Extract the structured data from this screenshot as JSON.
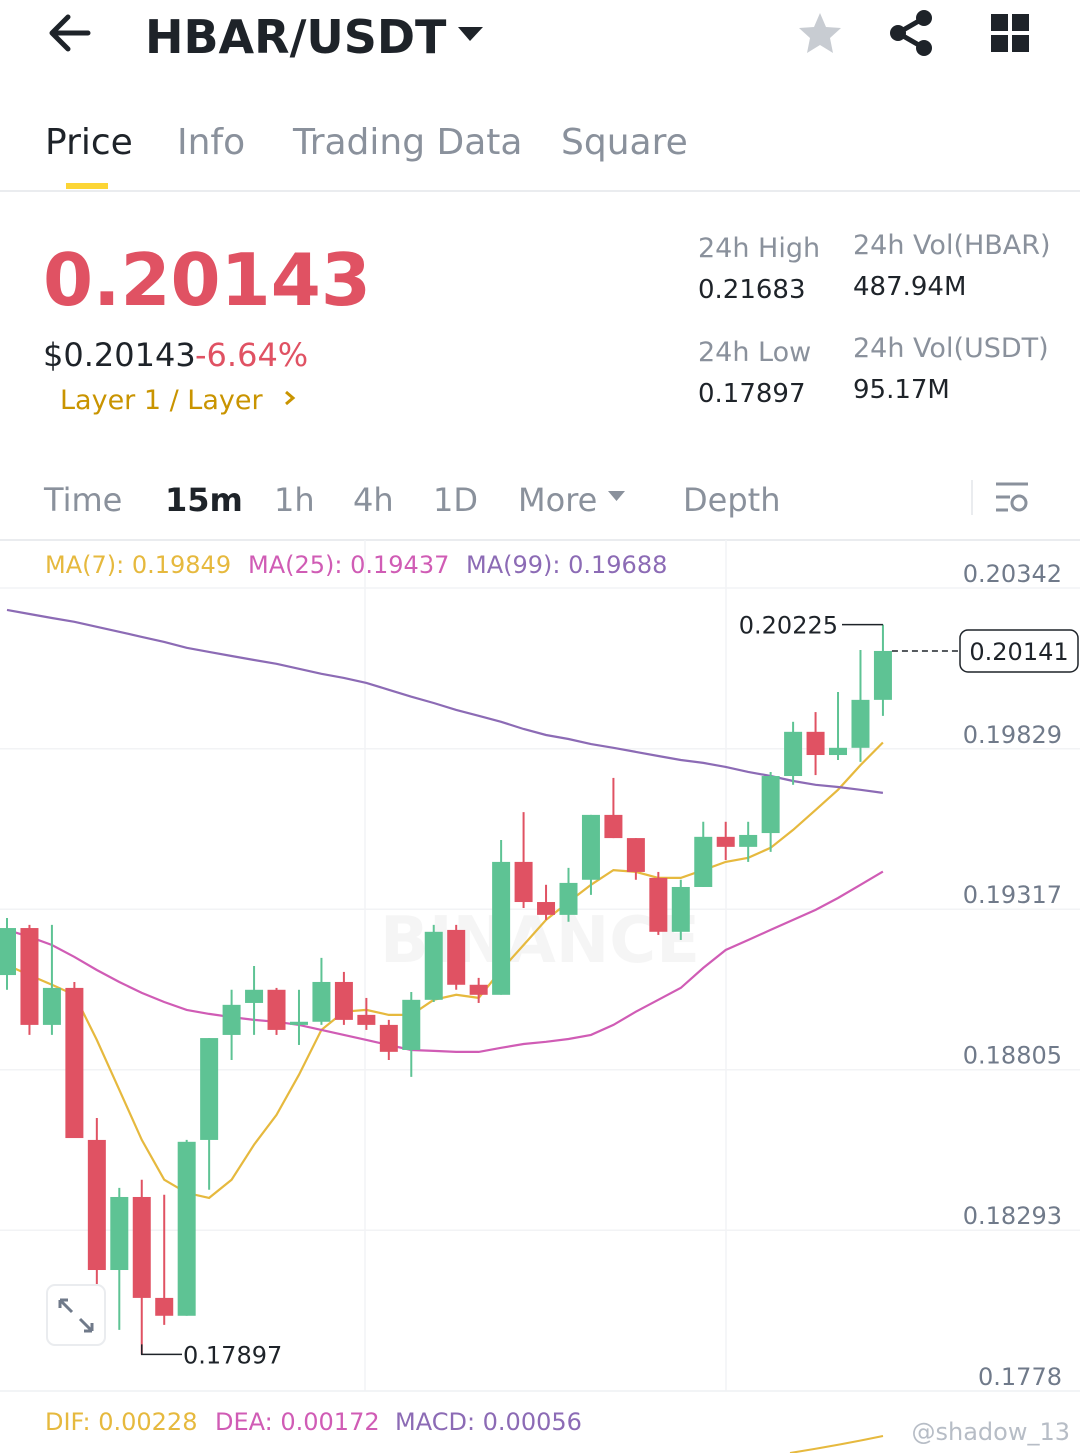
{
  "header": {
    "title": "HBAR/USDT"
  },
  "tabs": [
    "Price",
    "Info",
    "Trading Data",
    "Square"
  ],
  "summary": {
    "price": "0.20143",
    "usd_price": "$0.20143",
    "change": "-6.64%",
    "tag": "Layer 1 / Layer"
  },
  "stats": [
    {
      "label": "24h High",
      "value": "0.21683"
    },
    {
      "label": "24h Low",
      "value": "0.17897"
    },
    {
      "label": "24h Vol(HBAR)",
      "value": "487.94M"
    },
    {
      "label": "24h Vol(USDT)",
      "value": "95.17M"
    }
  ],
  "intervals": [
    "Time",
    "15m",
    "1h",
    "4h",
    "1D",
    "More",
    "Depth"
  ],
  "chart_data": {
    "type": "candlestick",
    "up_color": "#5ec394",
    "down_color": "#e05263",
    "ylim": [
      0.1778,
      0.20495
    ],
    "yticks": [
      0.20342,
      0.19829,
      0.19317,
      0.18805,
      0.18293,
      0.1778
    ],
    "grid": true,
    "open": [
      0.19107,
      0.19257,
      0.18948,
      0.19066,
      0.18581,
      0.18166,
      0.18399,
      0.18077,
      0.1802,
      0.18581,
      0.18916,
      0.19018,
      0.1906,
      0.18948,
      0.18958,
      0.19085,
      0.1898,
      0.18948,
      0.18868,
      0.19028,
      0.19251,
      0.19076,
      0.19044,
      0.19468,
      0.1934,
      0.19299,
      0.19411,
      0.19618,
      0.19544,
      0.19417,
      0.19245,
      0.19388,
      0.19548,
      0.19516,
      0.1956,
      0.19742,
      0.19883,
      0.19809,
      0.19832,
      0.19985
    ],
    "high": [
      0.19289,
      0.19267,
      0.19267,
      0.19085,
      0.18651,
      0.18428,
      0.18454,
      0.18406,
      0.18581,
      0.18906,
      0.1906,
      0.19136,
      0.19066,
      0.1906,
      0.19162,
      0.19117,
      0.19034,
      0.18964,
      0.19053,
      0.19267,
      0.19267,
      0.19098,
      0.19538,
      0.19627,
      0.19395,
      0.19449,
      0.19618,
      0.19736,
      0.19544,
      0.19436,
      0.19411,
      0.19596,
      0.19596,
      0.19596,
      0.19755,
      0.19915,
      0.19946,
      0.2001,
      0.20144,
      0.20225
    ],
    "low": [
      0.1906,
      0.18916,
      0.18916,
      0.18587,
      0.18119,
      0.17975,
      0.17897,
      0.17991,
      0.1802,
      0.18422,
      0.18836,
      0.18916,
      0.18916,
      0.18884,
      0.18948,
      0.18948,
      0.18932,
      0.18836,
      0.18782,
      0.19021,
      0.1906,
      0.19018,
      0.19044,
      0.19321,
      0.19283,
      0.19277,
      0.19363,
      0.19544,
      0.19411,
      0.19235,
      0.19219,
      0.19388,
      0.19474,
      0.19468,
      0.195,
      0.19714,
      0.19745,
      0.19793,
      0.19787,
      0.19934
    ],
    "close": [
      0.19257,
      0.18948,
      0.19066,
      0.18587,
      0.18166,
      0.18399,
      0.18077,
      0.1802,
      0.18575,
      0.18906,
      0.19012,
      0.1906,
      0.18932,
      0.18958,
      0.19085,
      0.18964,
      0.18948,
      0.18862,
      0.19028,
      0.19245,
      0.19076,
      0.19044,
      0.19468,
      0.1934,
      0.19299,
      0.19401,
      0.19618,
      0.19544,
      0.19436,
      0.19245,
      0.19388,
      0.19548,
      0.19516,
      0.19554,
      0.19742,
      0.19883,
      0.19809,
      0.19832,
      0.19985,
      0.20141
    ],
    "series": [
      {
        "name": "MA(7)",
        "label": "MA(7): 0.19849",
        "color": "#e6b93e",
        "values": [
          0.19139,
          0.19107,
          0.19076,
          0.19044,
          0.189,
          0.18741,
          0.18581,
          0.18454,
          0.18412,
          0.18396,
          0.18454,
          0.18566,
          0.18661,
          0.18789,
          0.18932,
          0.1899,
          0.18996,
          0.1898,
          0.1898,
          0.19028,
          0.19044,
          0.19034,
          0.19123,
          0.19203,
          0.19283,
          0.1934,
          0.19395,
          0.19442,
          0.19436,
          0.19417,
          0.19417,
          0.19442,
          0.19468,
          0.19481,
          0.19513,
          0.1957,
          0.19634,
          0.19698,
          0.19777,
          0.19849
        ]
      },
      {
        "name": "MA(25)",
        "label": "MA(25): 0.19437",
        "color": "#d05cb5",
        "values": [
          0.19251,
          0.19229,
          0.19203,
          0.19165,
          0.19123,
          0.19085,
          0.1905,
          0.19021,
          0.18996,
          0.18983,
          0.18973,
          0.18964,
          0.18958,
          0.18948,
          0.18932,
          0.18916,
          0.189,
          0.18884,
          0.18868,
          0.18865,
          0.18862,
          0.18862,
          0.18875,
          0.18887,
          0.18894,
          0.18903,
          0.18916,
          0.18948,
          0.1899,
          0.19028,
          0.19066,
          0.1913,
          0.19187,
          0.19219,
          0.19251,
          0.19283,
          0.19315,
          0.19353,
          0.19395,
          0.19437
        ]
      },
      {
        "name": "MA(99)",
        "label": "MA(99): 0.19688",
        "color": "#8c6bb5",
        "values": [
          0.20272,
          0.20259,
          0.20246,
          0.20234,
          0.20218,
          0.20202,
          0.20186,
          0.2017,
          0.20151,
          0.20138,
          0.20125,
          0.20112,
          0.201,
          0.20084,
          0.20068,
          0.20055,
          0.20039,
          0.20017,
          0.19995,
          0.19975,
          0.19953,
          0.19934,
          0.19915,
          0.19892,
          0.19873,
          0.1986,
          0.19844,
          0.19832,
          0.19819,
          0.19806,
          0.19793,
          0.19784,
          0.19771,
          0.19755,
          0.19742,
          0.19726,
          0.19714,
          0.19707,
          0.19698,
          0.19688
        ]
      }
    ],
    "annotations": {
      "high": 0.20225,
      "low": 0.17897,
      "last": 0.20141
    },
    "indicators": [
      {
        "label": "DIF: 0.00228",
        "color": "#e6b93e"
      },
      {
        "label": "DEA: 0.00172",
        "color": "#d05cb5"
      },
      {
        "label": "MACD: 0.00056",
        "color": "#8c6bb5"
      }
    ],
    "watermark": "BINANCE"
  },
  "credit": "@shadow_13"
}
